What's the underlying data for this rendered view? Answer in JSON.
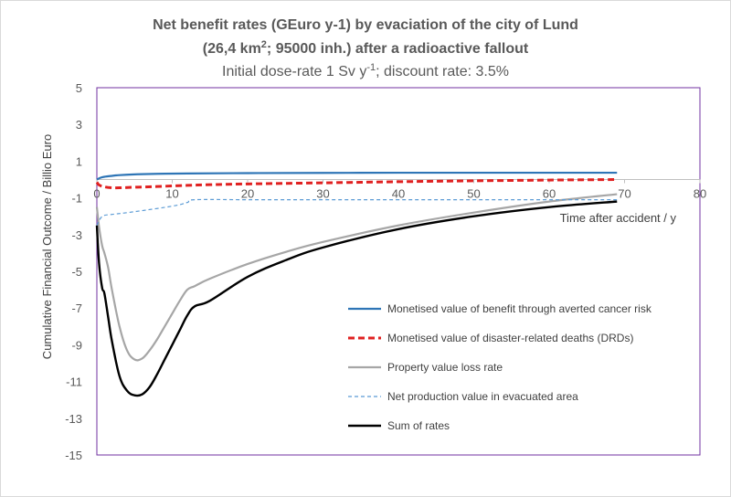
{
  "chart_data": {
    "type": "line",
    "title_line1": "Net benefit rates (GEuro y-1) by evaciation of the city of Lund",
    "title_line2_pre": "(26,4 km",
    "title_line2_sup": "2",
    "title_line2_post": "; 95000 inh.) after a radioactive fallout",
    "subtitle_pre": "Initial dose-rate 1 Sv y",
    "subtitle_sup": "-1",
    "subtitle_post": "; discount rate: 3.5%",
    "xlabel": "Time after accident / y",
    "ylabel": "Cumulative Financial Outcome / Billio Euro",
    "xlim": [
      0,
      80
    ],
    "ylim": [
      -15,
      5
    ],
    "x_ticks": [
      "0",
      "10",
      "20",
      "30",
      "40",
      "50",
      "60",
      "70",
      "80"
    ],
    "y_ticks": [
      "5",
      "3",
      "1",
      "-1",
      "-3",
      "-5",
      "-7",
      "-9",
      "-11",
      "-13",
      "-15"
    ],
    "series": [
      {
        "name": "Monetised value of benefit through averted cancer risk",
        "color": "#2E75B6",
        "style": "solid",
        "x": [
          0,
          0.5,
          1,
          2,
          3,
          5,
          8,
          12,
          20,
          30,
          40,
          50,
          60,
          69
        ],
        "y": [
          0,
          0.1,
          0.15,
          0.2,
          0.24,
          0.28,
          0.31,
          0.33,
          0.35,
          0.36,
          0.37,
          0.37,
          0.37,
          0.37
        ]
      },
      {
        "name": "Monetised value of disaster-related deaths (DRDs)",
        "color": "#E02020",
        "style": "dashed",
        "x": [
          0,
          0.3,
          1,
          2,
          3,
          5,
          8,
          12,
          15,
          20,
          30,
          40,
          50,
          60,
          69
        ],
        "y": [
          -0.15,
          -0.3,
          -0.4,
          -0.45,
          -0.45,
          -0.42,
          -0.38,
          -0.32,
          -0.28,
          -0.24,
          -0.18,
          -0.12,
          -0.07,
          -0.03,
          0
        ]
      },
      {
        "name": "Property value loss rate",
        "color": "#A6A6A6",
        "style": "solid",
        "x": [
          0,
          0.3,
          0.7,
          1,
          1.5,
          2,
          3,
          4,
          5,
          6,
          7,
          8,
          9,
          10,
          11,
          12,
          13,
          15,
          20,
          25,
          30,
          40,
          50,
          60,
          69
        ],
        "y": [
          -1.5,
          -2.6,
          -3.6,
          -4.0,
          -4.8,
          -6.0,
          -8.0,
          -9.3,
          -9.8,
          -9.75,
          -9.3,
          -8.7,
          -8.0,
          -7.3,
          -6.6,
          -6.0,
          -5.8,
          -5.4,
          -4.6,
          -3.95,
          -3.4,
          -2.5,
          -1.8,
          -1.2,
          -0.8
        ]
      },
      {
        "name": "Net production value in evacuated area",
        "color": "#5B9BD5",
        "style": "dashed-thin",
        "x": [
          0,
          0.5,
          1,
          2,
          5,
          10,
          12,
          13,
          20,
          30,
          40,
          50,
          60,
          69
        ],
        "y": [
          -2.5,
          -2.1,
          -1.95,
          -1.9,
          -1.75,
          -1.45,
          -1.25,
          -1.1,
          -1.1,
          -1.1,
          -1.1,
          -1.1,
          -1.1,
          -1.1
        ]
      },
      {
        "name": "Sum of rates",
        "color": "#000000",
        "style": "solid",
        "x": [
          0,
          0.3,
          0.7,
          1,
          1.5,
          2,
          3,
          4,
          5,
          6,
          7,
          8,
          9,
          10,
          11,
          12,
          13,
          15,
          20,
          25,
          30,
          40,
          50,
          60,
          69
        ],
        "y": [
          -2.5,
          -4.6,
          -5.9,
          -6.2,
          -7.5,
          -8.8,
          -10.7,
          -11.5,
          -11.75,
          -11.7,
          -11.3,
          -10.6,
          -9.8,
          -9.0,
          -8.2,
          -7.4,
          -6.9,
          -6.6,
          -5.3,
          -4.4,
          -3.7,
          -2.7,
          -2.0,
          -1.5,
          -1.2
        ]
      }
    ]
  }
}
